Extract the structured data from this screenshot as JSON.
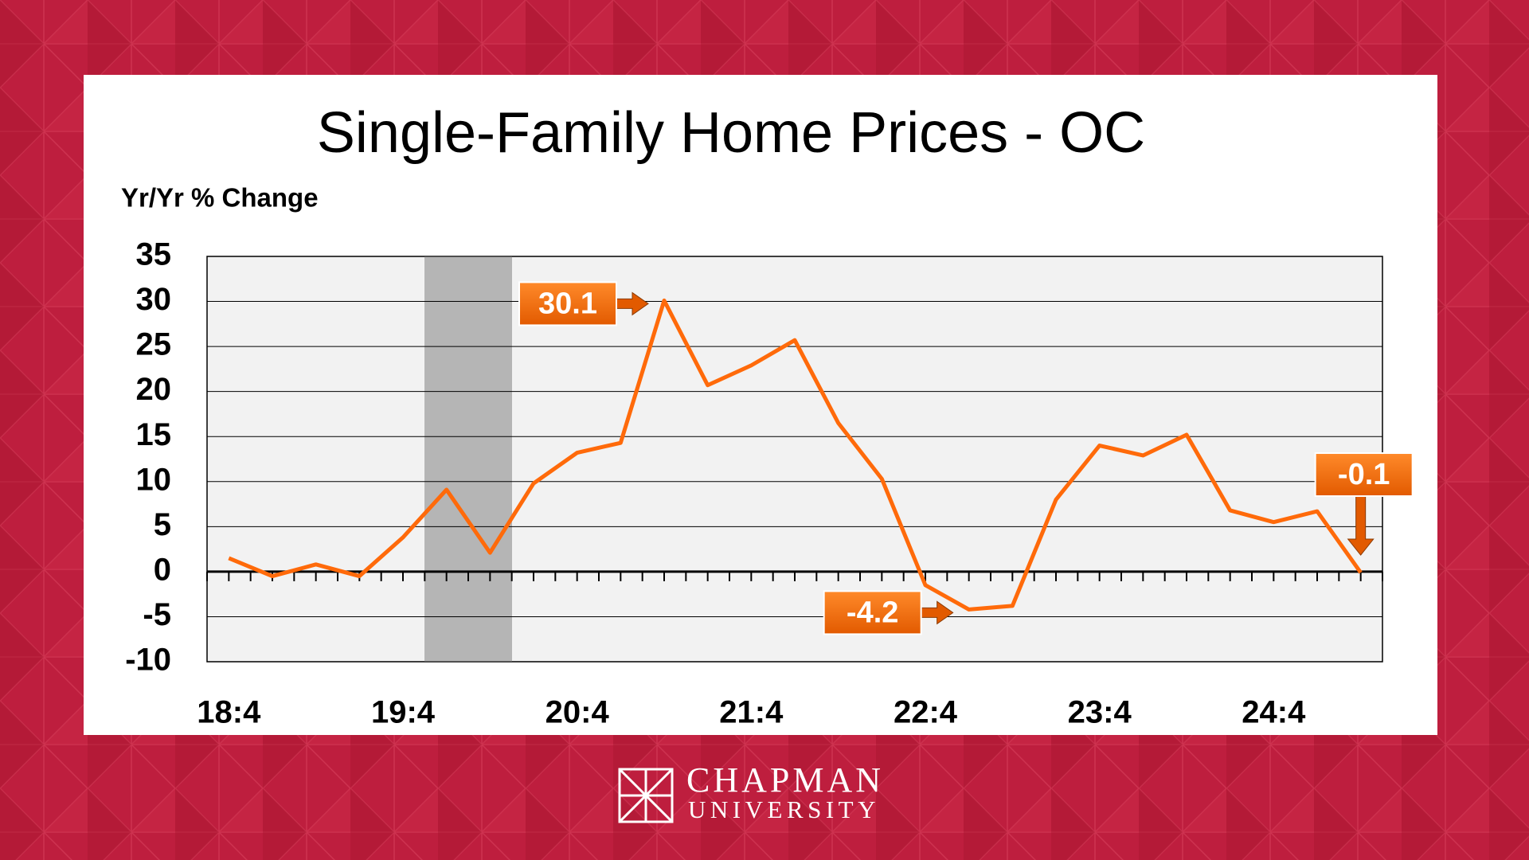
{
  "chart_data": {
    "type": "line",
    "title": "Single-Family Home Prices - OC",
    "y_label": "Yr/Yr % Change",
    "categories": [
      "18:4",
      null,
      null,
      null,
      "19:4",
      null,
      null,
      null,
      "20:4",
      null,
      null,
      null,
      "21:4",
      null,
      null,
      null,
      "22:4",
      null,
      null,
      null,
      "23:4",
      null,
      null,
      null,
      "24:4",
      null,
      null
    ],
    "series": [
      {
        "name": "Single-Family Home Prices - OC",
        "color": "#ff6a0a",
        "values": [
          1.5,
          -0.5,
          0.8,
          -0.5,
          3.8,
          9.1,
          2.1,
          9.8,
          13.2,
          14.3,
          30.1,
          20.7,
          22.9,
          25.7,
          16.5,
          10.3,
          -1.5,
          -4.2,
          -3.8,
          8.0,
          14.0,
          12.9,
          15.2,
          6.8,
          5.5,
          6.7,
          -0.1
        ],
        "value_labels": [
          null,
          null,
          null,
          null,
          null,
          null,
          null,
          null,
          null,
          null,
          "30.1",
          null,
          null,
          null,
          null,
          null,
          null,
          "-4.2",
          null,
          null,
          null,
          null,
          null,
          null,
          null,
          null,
          "-0.1"
        ]
      }
    ],
    "ylim": [
      -10,
      35
    ],
    "yticks": [
      -10,
      -5,
      0,
      5,
      10,
      15,
      20,
      25,
      30,
      35
    ],
    "grid": true,
    "legend": false
  },
  "footer": {
    "logo_line1": "CHAPMAN",
    "logo_line2": "UNIVERSITY"
  }
}
